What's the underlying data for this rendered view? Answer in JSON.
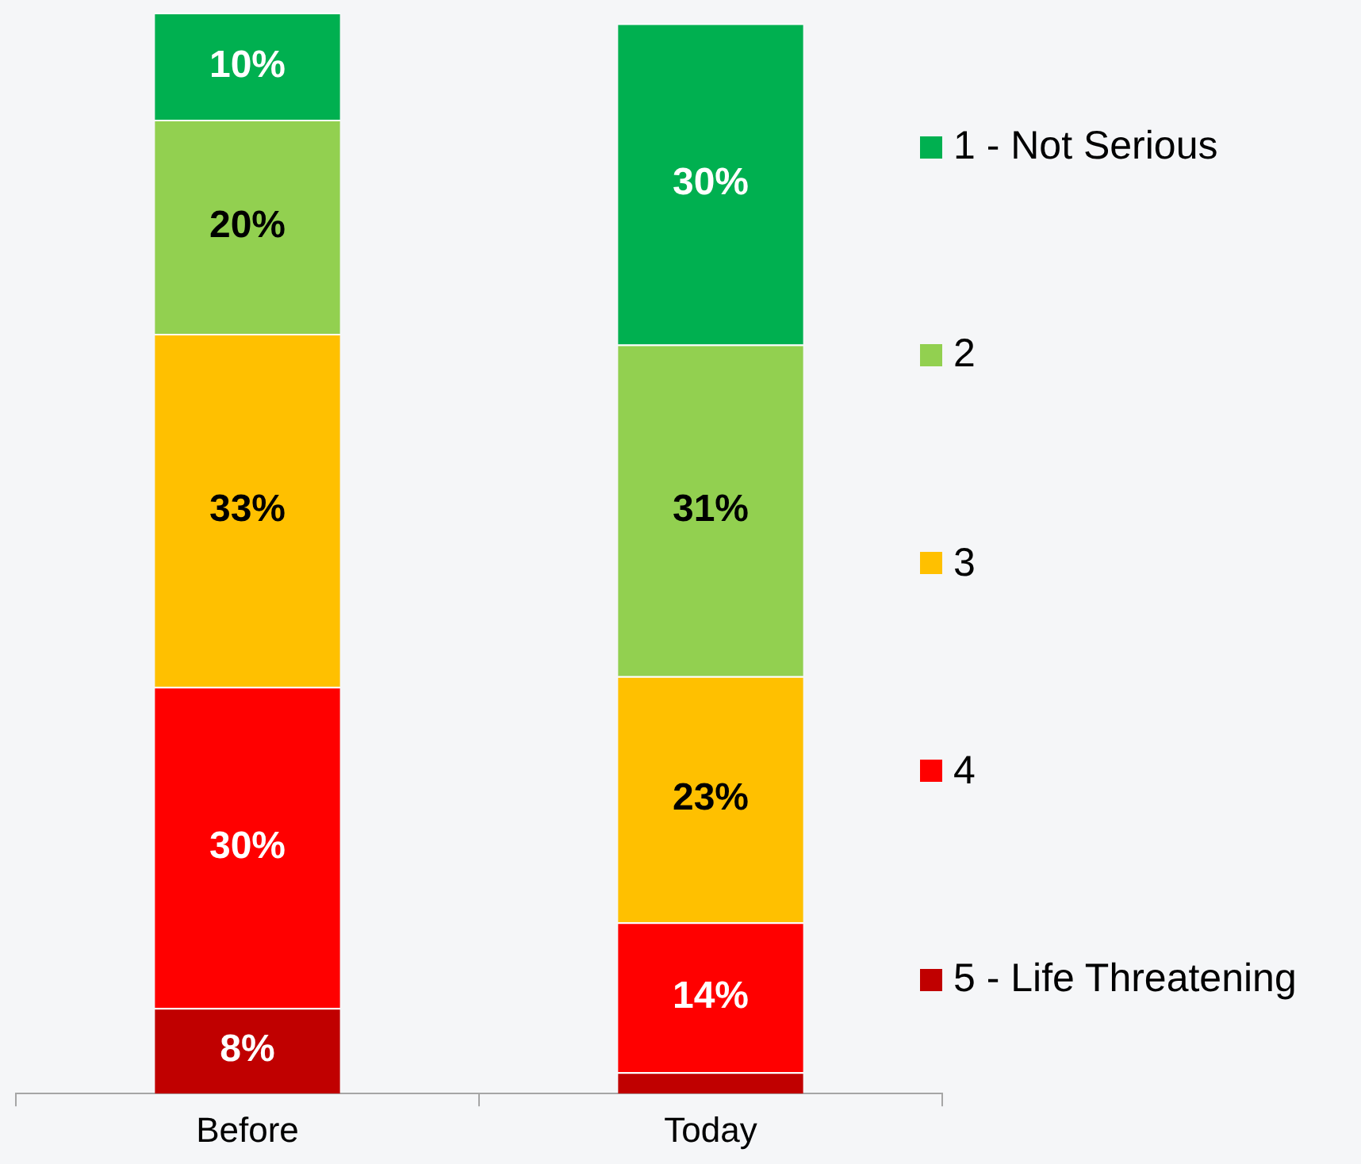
{
  "chart_data": {
    "type": "bar",
    "stacked": true,
    "categories": [
      "Before",
      "Today"
    ],
    "legend": "right",
    "series": [
      {
        "name": "5 - Life Threatening",
        "color": "#c00000",
        "values": [
          8,
          2
        ],
        "value_labels": [
          "8%",
          null
        ]
      },
      {
        "name": "4",
        "color": "#ff0000",
        "values": [
          30,
          14
        ],
        "value_labels": [
          "30%",
          "14%"
        ]
      },
      {
        "name": "3",
        "color": "#ffc000",
        "values": [
          33,
          23
        ],
        "value_labels": [
          "33%",
          "23%"
        ]
      },
      {
        "name": "2",
        "color": "#92d050",
        "values": [
          20,
          31
        ],
        "value_labels": [
          "20%",
          "31%"
        ]
      },
      {
        "name": "1 - Not Serious",
        "color": "#00b050",
        "values": [
          10,
          30
        ],
        "value_labels": [
          "10%",
          "30%"
        ]
      }
    ]
  }
}
